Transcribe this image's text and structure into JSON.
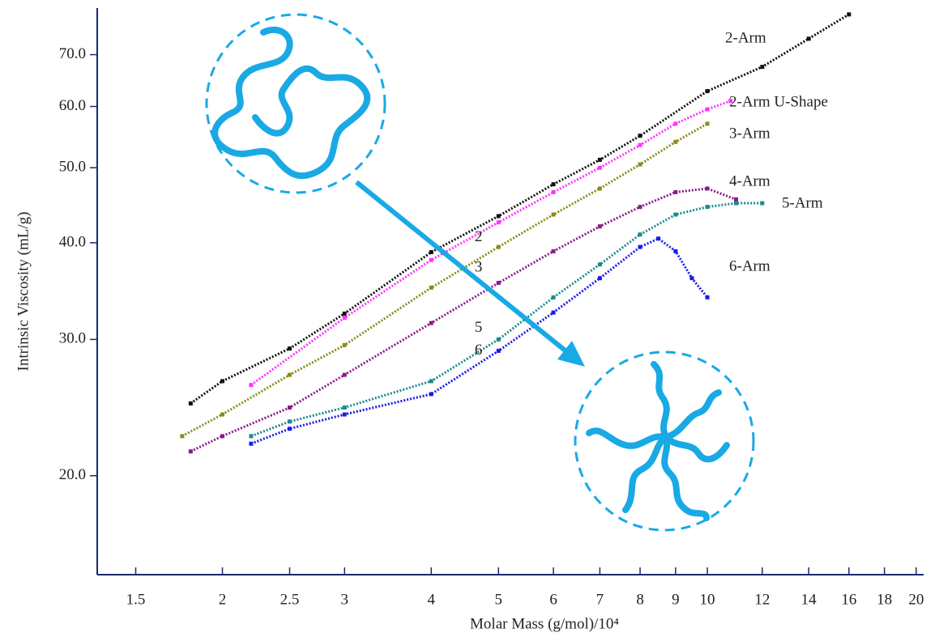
{
  "chart_data": {
    "type": "scatter",
    "x_label": "Molar Mass (g/mol)/10⁴",
    "y_label": "Intrinsic Viscosity (mL/g)",
    "log_x": true,
    "log_y": true,
    "xlim": [
      1.32,
      20.5
    ],
    "ylim": [
      14.9,
      80.4
    ],
    "xticks": [
      1.5,
      2,
      2.5,
      3,
      4,
      5,
      6,
      7,
      8,
      9,
      10,
      12,
      14,
      16,
      18,
      20
    ],
    "yticks": [
      {
        "value": 20,
        "label": "20.0"
      },
      {
        "value": 30,
        "label": "30.0"
      },
      {
        "value": 40,
        "label": "40.0"
      },
      {
        "value": 50,
        "label": "50.0"
      },
      {
        "value": 60,
        "label": "60.0"
      },
      {
        "value": 70,
        "label": "70.0"
      }
    ],
    "series": [
      {
        "name": "2-Arm",
        "color": "#111111",
        "x": [
          1.8,
          2,
          2.5,
          3,
          4,
          5,
          6,
          7,
          8,
          10,
          12,
          14,
          16
        ],
        "values": [
          24.8,
          26.5,
          29.2,
          32.4,
          38.9,
          43.3,
          47.6,
          51.2,
          55,
          62.8,
          67.5,
          73.4,
          78.9
        ]
      },
      {
        "name": "2-Arm U-Shape",
        "color": "#ff33ff",
        "x": [
          2.2,
          3,
          4,
          5,
          6,
          7,
          8,
          9,
          10,
          10.8
        ],
        "values": [
          26.2,
          32,
          38,
          42.5,
          46.5,
          50,
          53.5,
          57,
          59.5,
          61
        ]
      },
      {
        "name": "3-Arm",
        "color": "#8b8b1a",
        "x": [
          1.75,
          2,
          2.5,
          3,
          4,
          5,
          6,
          7,
          8,
          9,
          10
        ],
        "values": [
          22.5,
          24,
          27,
          29.5,
          35,
          39.5,
          43.5,
          47,
          50.5,
          54,
          57
        ]
      },
      {
        "name": "4-Arm",
        "color": "#8b1a8b",
        "x": [
          1.8,
          2,
          2.5,
          3,
          4,
          5,
          6,
          7,
          8,
          9,
          10,
          11
        ],
        "values": [
          21.5,
          22.5,
          24.5,
          27,
          31.5,
          35.5,
          39,
          42,
          44.5,
          46.5,
          47,
          45.5
        ]
      },
      {
        "name": "5-Arm",
        "color": "#1a8b8b",
        "x": [
          2.2,
          2.5,
          3,
          4,
          5,
          6,
          7,
          8,
          9,
          10,
          11,
          12
        ],
        "values": [
          22.5,
          23.5,
          24.5,
          26.5,
          30,
          34,
          37.5,
          41,
          43.5,
          44.5,
          45,
          45
        ]
      },
      {
        "name": "6-Arm",
        "color": "#1a1aee",
        "x": [
          2.2,
          2.5,
          3,
          4,
          5,
          6,
          7,
          8,
          8.5,
          9,
          9.5,
          10
        ],
        "values": [
          22,
          23,
          24,
          25.5,
          29,
          32.5,
          36,
          39.5,
          40.5,
          39,
          36,
          34
        ]
      }
    ],
    "annotations": [
      {
        "text": "2",
        "x": 4.68,
        "y": 40.6
      },
      {
        "text": "3",
        "x": 4.68,
        "y": 37.1
      },
      {
        "text": "5",
        "x": 4.68,
        "y": 31.0
      },
      {
        "text": "6",
        "x": 4.68,
        "y": 29.0
      }
    ]
  }
}
